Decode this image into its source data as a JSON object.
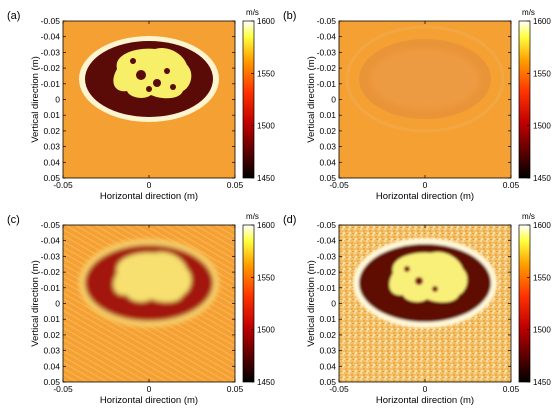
{
  "figure": {
    "panels": [
      {
        "label": "(a)",
        "variant": "true_model"
      },
      {
        "label": "(b)",
        "variant": "smooth"
      },
      {
        "label": "(c)",
        "variant": "blurred"
      },
      {
        "label": "(d)",
        "variant": "noisy_sharp"
      }
    ],
    "xlabel": "Horizontal direction (m)",
    "ylabel": "Vertical direction (m)",
    "x_ticks": [
      "-0.05",
      "0",
      "0.05"
    ],
    "y_ticks": [
      "-0.05",
      "-0.04",
      "-0.03",
      "-0.02",
      "-0.01",
      "0",
      "0.01",
      "0.02",
      "0.03",
      "0.04",
      "0.05"
    ],
    "colorbar": {
      "unit": "m/s",
      "ticks": [
        "1600",
        "1550",
        "1500",
        "1450"
      ],
      "range": [
        1450,
        1600
      ],
      "colormap": "hot"
    },
    "colors": {
      "background": "#f5a033",
      "ring": "#fff4d0",
      "dark": "#5a0a07",
      "yellow": "#f6ef67"
    }
  }
}
